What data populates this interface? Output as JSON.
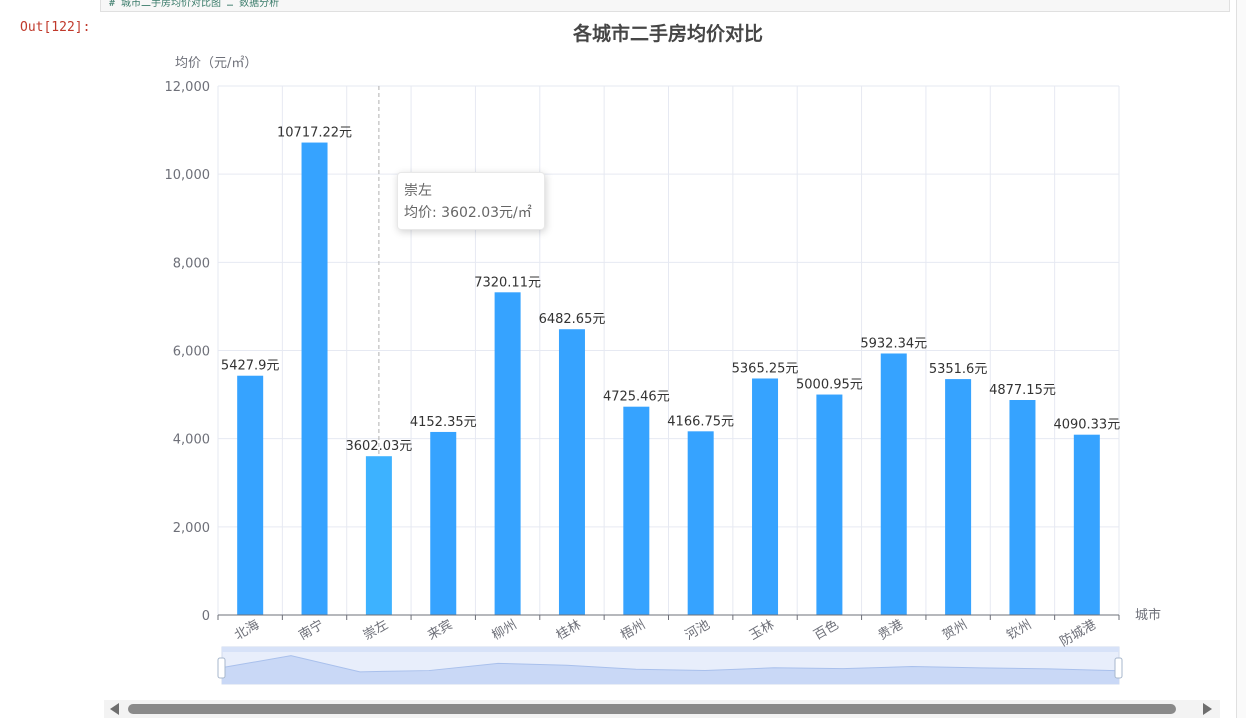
{
  "cell": {
    "prompt": "Out[122]:",
    "prev_code": "# 城市二手房均价对比图 … 数据分析"
  },
  "tooltip": {
    "city": "崇左",
    "label": "均价: 3602.03元/㎡"
  },
  "chart_data": {
    "type": "bar",
    "title": "各城市二手房均价对比",
    "ylabel": "均价（元/㎡）",
    "xlabel": "城市",
    "ylim": [
      0,
      12000
    ],
    "yticks": [
      "0",
      "2,000",
      "4,000",
      "6,000",
      "8,000",
      "10,000",
      "12,000"
    ],
    "grid": true,
    "highlight_index": 2,
    "categories": [
      "北海",
      "南宁",
      "崇左",
      "来宾",
      "柳州",
      "桂林",
      "梧州",
      "河池",
      "玉林",
      "百色",
      "贵港",
      "贺州",
      "钦州",
      "防城港"
    ],
    "values": [
      5427.9,
      10717.22,
      3602.03,
      4152.35,
      7320.11,
      6482.65,
      4725.46,
      4166.75,
      5365.25,
      5000.95,
      5932.34,
      5351.6,
      4877.15,
      4090.33
    ],
    "data_labels": [
      "5427.9元",
      "10717.22元",
      "3602.03元",
      "4152.35元",
      "7320.11元",
      "6482.65元",
      "4725.46元",
      "4166.75元",
      "5365.25元",
      "5000.95元",
      "5932.34元",
      "5351.6元",
      "4877.15元",
      "4090.33元"
    ],
    "colors": {
      "bar": "#36a3ff",
      "bar_highlight": "#3db2ff",
      "grid": "#e6e9f2",
      "axis": "#6e7079",
      "label": "#333333"
    },
    "datazoom": {
      "start": 0,
      "end": 100
    }
  }
}
